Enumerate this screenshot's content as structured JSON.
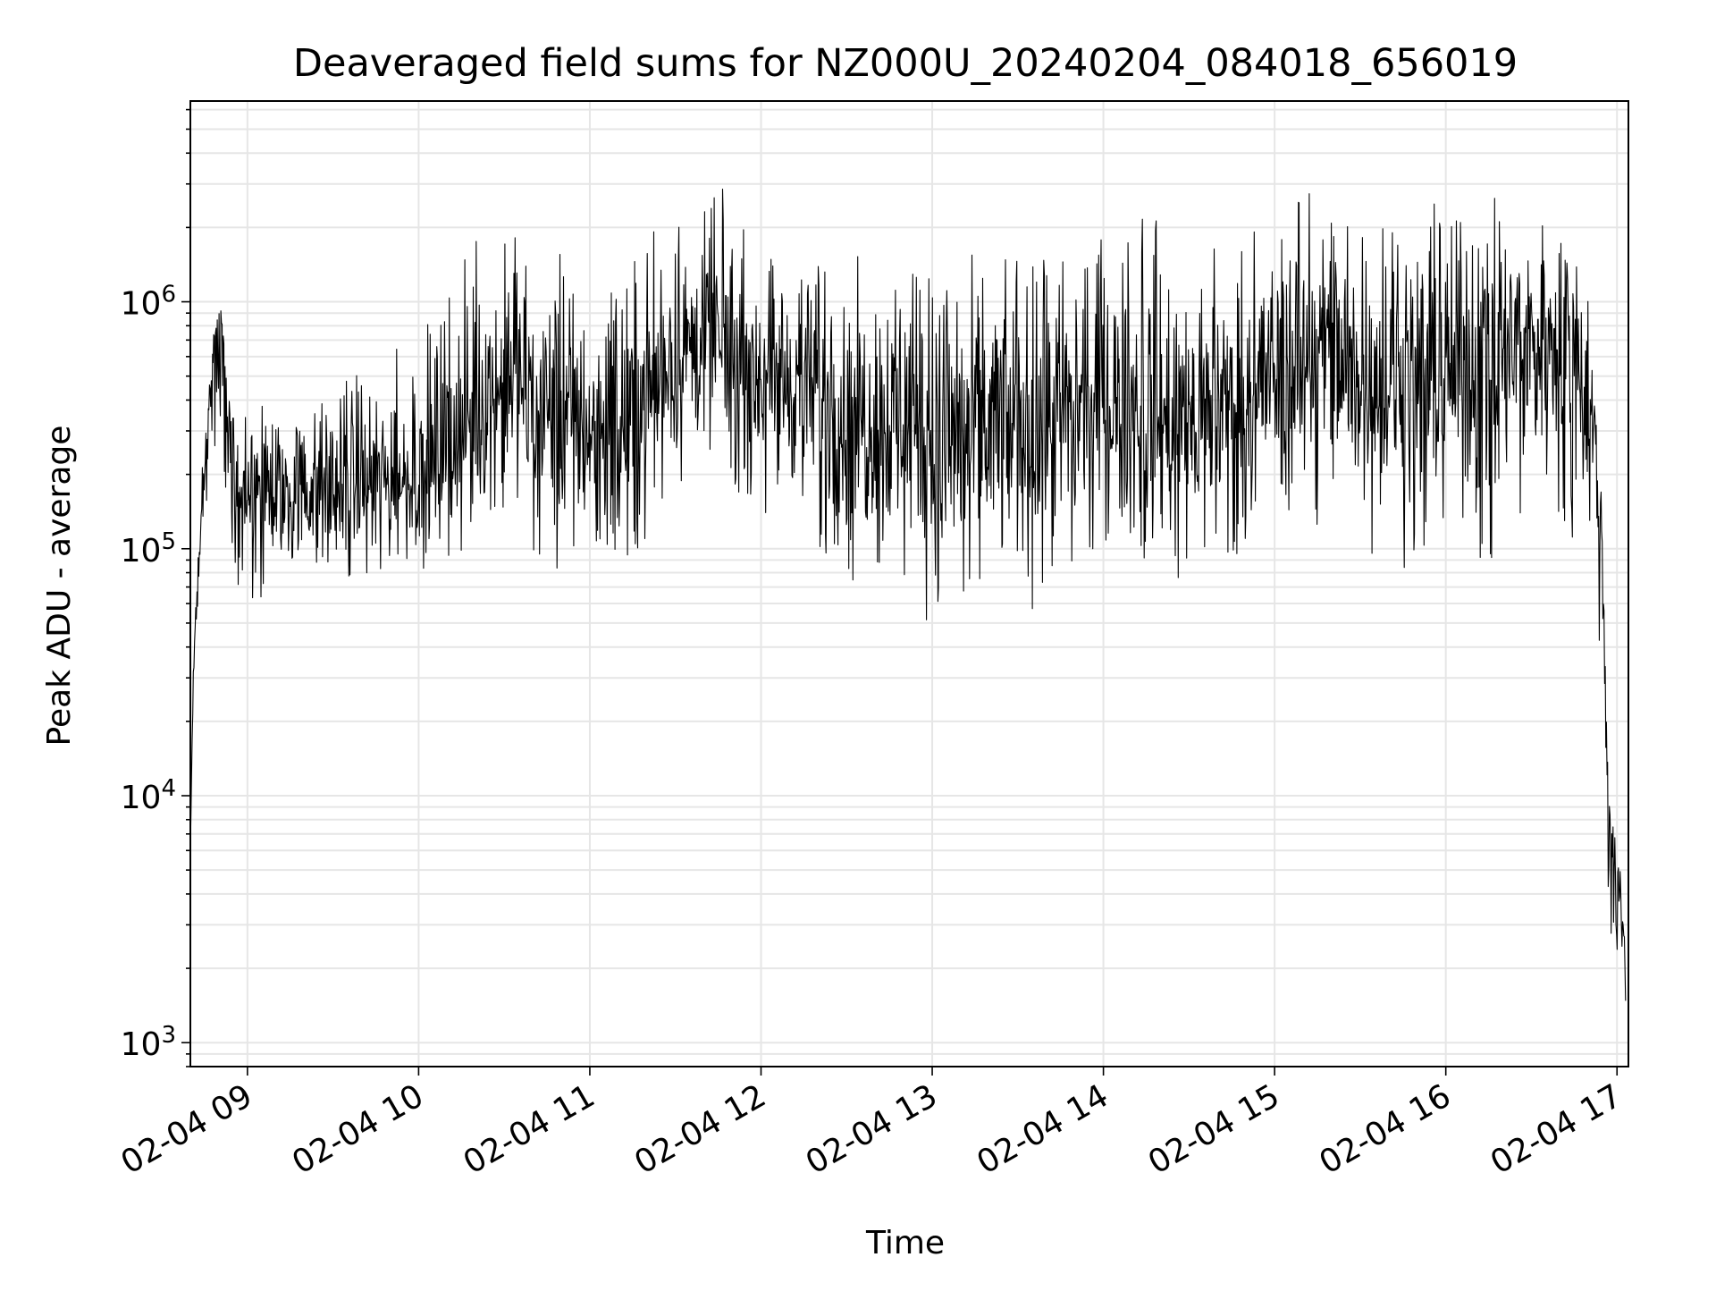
{
  "chart_data": {
    "type": "line",
    "title": "Deaveraged field sums for NZ000U_20240204_084018_656019",
    "xlabel": "Time",
    "ylabel": "Peak ADU - average",
    "x_scale": "time",
    "y_scale": "log",
    "xlim": [
      "2024-02-04 08:40",
      "2024-02-04 17:04"
    ],
    "ylim": [
      800,
      6500000
    ],
    "x_ticks": [
      "02-04 09",
      "02-04 10",
      "02-04 11",
      "02-04 12",
      "02-04 13",
      "02-04 14",
      "02-04 15",
      "02-04 16",
      "02-04 17"
    ],
    "y_ticks": [
      {
        "value": 1000,
        "base": "10",
        "exp": "3"
      },
      {
        "value": 10000,
        "base": "10",
        "exp": "4"
      },
      {
        "value": 100000,
        "base": "10",
        "exp": "5"
      },
      {
        "value": 1000000,
        "base": "10",
        "exp": "6"
      }
    ],
    "grid": true,
    "series": [
      {
        "color": "#000000",
        "x": [
          "2024-02-04 08:40",
          "2024-02-04 08:41",
          "2024-02-04 08:42",
          "2024-02-04 08:43",
          "2024-02-04 08:45",
          "2024-02-04 08:47",
          "2024-02-04 08:49",
          "2024-02-04 08:51",
          "2024-02-04 08:53",
          "2024-02-04 08:55",
          "2024-02-04 08:57",
          "2024-02-04 08:59",
          "2024-02-04 09:05",
          "2024-02-04 09:15",
          "2024-02-04 09:30",
          "2024-02-04 09:45",
          "2024-02-04 10:00",
          "2024-02-04 10:15",
          "2024-02-04 10:30",
          "2024-02-04 10:45",
          "2024-02-04 11:00",
          "2024-02-04 11:15",
          "2024-02-04 11:30",
          "2024-02-04 11:45",
          "2024-02-04 12:00",
          "2024-02-04 12:15",
          "2024-02-04 12:30",
          "2024-02-04 12:45",
          "2024-02-04 13:00",
          "2024-02-04 13:15",
          "2024-02-04 13:30",
          "2024-02-04 13:45",
          "2024-02-04 14:00",
          "2024-02-04 14:15",
          "2024-02-04 14:30",
          "2024-02-04 14:45",
          "2024-02-04 15:00",
          "2024-02-04 15:15",
          "2024-02-04 15:30",
          "2024-02-04 15:45",
          "2024-02-04 16:00",
          "2024-02-04 16:15",
          "2024-02-04 16:30",
          "2024-02-04 16:45",
          "2024-02-04 16:50",
          "2024-02-04 16:53",
          "2024-02-04 16:55",
          "2024-02-04 16:57",
          "2024-02-04 16:59",
          "2024-02-04 17:01",
          "2024-02-04 17:03"
        ],
        "y_median": [
          6000,
          30000,
          60000,
          100000,
          200000,
          400000,
          900000,
          800000,
          400000,
          250000,
          180000,
          160000,
          170000,
          160000,
          170000,
          180000,
          190000,
          280000,
          450000,
          380000,
          300000,
          330000,
          600000,
          650000,
          500000,
          450000,
          320000,
          380000,
          260000,
          320000,
          300000,
          320000,
          400000,
          330000,
          300000,
          380000,
          480000,
          600000,
          420000,
          500000,
          550000,
          600000,
          700000,
          650000,
          400000,
          200000,
          80000,
          10000,
          5000,
          3500,
          2500
        ],
        "y_high": [
          6000,
          35000,
          80000,
          150000,
          400000,
          800000,
          1200000,
          1100000,
          600000,
          500000,
          400000,
          350000,
          380000,
          450000,
          500000,
          550000,
          800000,
          1500000,
          2500000,
          1500000,
          1800000,
          2000000,
          2200000,
          3000000,
          2000000,
          1600000,
          1500000,
          1700000,
          1600000,
          1600000,
          1600000,
          1500000,
          1800000,
          2500000,
          1800000,
          2000000,
          2500000,
          3500000,
          2500000,
          3000000,
          2500000,
          2800000,
          2500000,
          2300000,
          1500000,
          500000,
          150000,
          12000,
          8000,
          6000,
          4000
        ],
        "y_low": [
          6000,
          20000,
          40000,
          60000,
          100000,
          150000,
          200000,
          150000,
          80000,
          60000,
          60000,
          65000,
          70000,
          80000,
          75000,
          80000,
          90000,
          100000,
          150000,
          80000,
          90000,
          100000,
          200000,
          200000,
          150000,
          130000,
          80000,
          70000,
          55000,
          60000,
          60000,
          70000,
          90000,
          90000,
          80000,
          100000,
          150000,
          120000,
          100000,
          90000,
          110000,
          90000,
          150000,
          120000,
          100000,
          60000,
          30000,
          3000,
          1800,
          1500,
          1100
        ]
      }
    ]
  }
}
